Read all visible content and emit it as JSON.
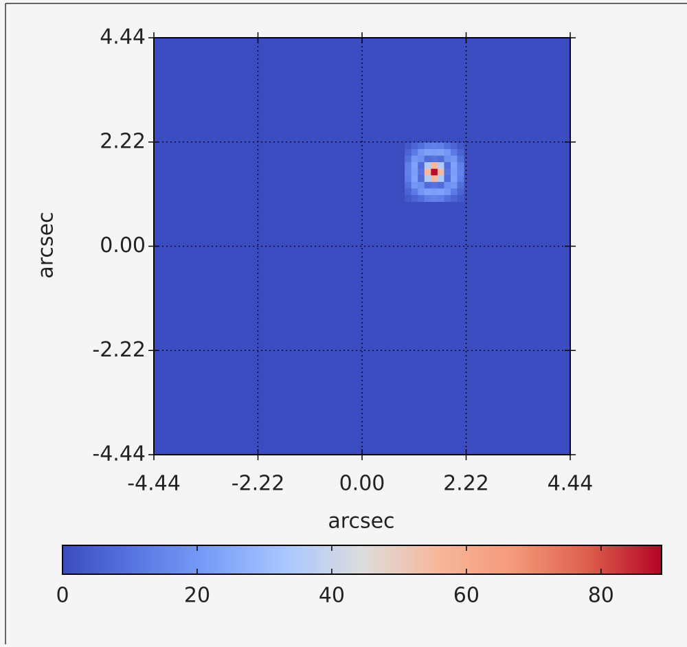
{
  "chart_data": {
    "type": "heatmap",
    "xlabel": "arcsec",
    "ylabel": "arcsec",
    "xlim": [
      -4.44,
      4.44
    ],
    "ylim": [
      -4.44,
      4.44
    ],
    "xticks": [
      -4.44,
      -2.22,
      {
        "value": 0,
        "label": "0.00"
      },
      2.22,
      4.44
    ],
    "yticks": [
      -4.44,
      -2.22,
      {
        "value": 0,
        "label": "0.00"
      },
      2.22,
      4.44
    ],
    "grid": true,
    "colormap": "coolwarm",
    "clim": [
      0,
      89
    ],
    "cticks": [
      0,
      20,
      40,
      60,
      80
    ],
    "x": [
      0.98,
      1.12,
      1.26,
      1.4,
      1.54,
      1.68,
      1.82,
      1.96,
      2.1
    ],
    "y": [
      2.14,
      2.0,
      1.86,
      1.72,
      1.58,
      1.44,
      1.3,
      1.16,
      1.02
    ],
    "values": [
      [
        3,
        6,
        9,
        13,
        14,
        13,
        9,
        6,
        3
      ],
      [
        6,
        12,
        20,
        23,
        22,
        23,
        20,
        12,
        6
      ],
      [
        9,
        20,
        18,
        8,
        10,
        8,
        18,
        20,
        9
      ],
      [
        13,
        23,
        8,
        35,
        55,
        35,
        8,
        23,
        13
      ],
      [
        14,
        22,
        10,
        55,
        88,
        55,
        10,
        22,
        14
      ],
      [
        13,
        23,
        8,
        35,
        55,
        35,
        8,
        23,
        13
      ],
      [
        9,
        20,
        18,
        8,
        10,
        8,
        18,
        20,
        9
      ],
      [
        6,
        12,
        20,
        23,
        22,
        23,
        20,
        12,
        6
      ],
      [
        3,
        6,
        9,
        13,
        14,
        13,
        9,
        6,
        3
      ]
    ]
  }
}
